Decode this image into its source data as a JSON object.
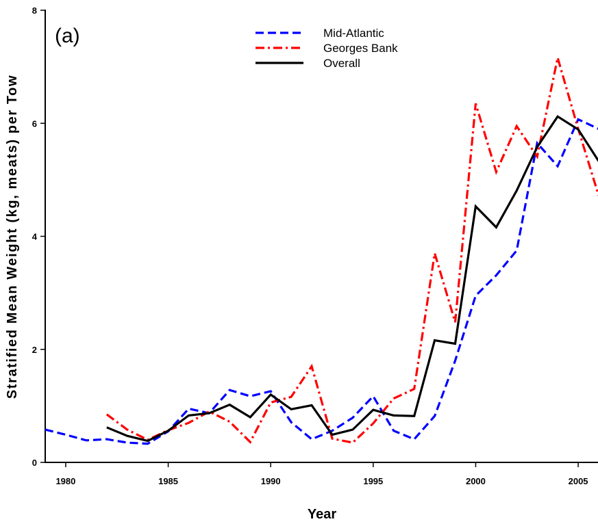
{
  "chart_data": {
    "type": "line",
    "panel_label": "(a)",
    "xlabel": "Year",
    "ylabel": "Stratified Mean Weight (kg, meats) per Tow",
    "xlim": [
      1979,
      2006
    ],
    "ylim": [
      0,
      8
    ],
    "x_ticks": [
      1980,
      1985,
      1990,
      1995,
      2000,
      2005
    ],
    "y_ticks": [
      0,
      2,
      4,
      6,
      8
    ],
    "grid": false,
    "legend_position": "top-center",
    "series": [
      {
        "name": "Mid-Atlantic",
        "color": "#0000ff",
        "style": "dashed",
        "x": [
          1979,
          1980,
          1981,
          1982,
          1983,
          1984,
          1985,
          1986,
          1987,
          1988,
          1989,
          1990,
          1991,
          1992,
          1993,
          1994,
          1995,
          1996,
          1997,
          1998,
          1999,
          2000,
          2001,
          2002,
          2003,
          2004,
          2005,
          2006
        ],
        "y": [
          0.58,
          0.49,
          0.39,
          0.41,
          0.35,
          0.33,
          0.55,
          0.95,
          0.87,
          1.28,
          1.17,
          1.26,
          0.71,
          0.41,
          0.56,
          0.79,
          1.17,
          0.56,
          0.41,
          0.82,
          1.8,
          2.95,
          3.31,
          3.75,
          5.65,
          5.24,
          6.07,
          5.9
        ]
      },
      {
        "name": "Georges Bank",
        "color": "#ff0000",
        "style": "dash-dot",
        "x": [
          1982,
          1983,
          1984,
          1985,
          1986,
          1987,
          1988,
          1989,
          1990,
          1991,
          1992,
          1993,
          1994,
          1995,
          1996,
          1997,
          1998,
          1999,
          2000,
          2001,
          2002,
          2003,
          2004,
          2005,
          2006
        ],
        "y": [
          0.85,
          0.58,
          0.4,
          0.57,
          0.7,
          0.9,
          0.72,
          0.36,
          1.06,
          1.16,
          1.7,
          0.42,
          0.35,
          0.69,
          1.13,
          1.3,
          3.7,
          2.48,
          6.35,
          5.14,
          5.95,
          5.41,
          7.16,
          5.9,
          4.72
        ]
      },
      {
        "name": "Overall",
        "color": "#000000",
        "style": "solid",
        "x": [
          1982,
          1983,
          1984,
          1985,
          1986,
          1987,
          1988,
          1989,
          1990,
          1991,
          1992,
          1993,
          1994,
          1995,
          1996,
          1997,
          1998,
          1999,
          2000,
          2001,
          2002,
          2003,
          2004,
          2005,
          2006
        ],
        "y": [
          0.62,
          0.47,
          0.38,
          0.56,
          0.83,
          0.87,
          1.02,
          0.8,
          1.2,
          0.94,
          1.01,
          0.49,
          0.58,
          0.93,
          0.83,
          0.82,
          2.16,
          2.1,
          4.53,
          4.16,
          4.81,
          5.58,
          6.12,
          5.89,
          5.33
        ]
      }
    ]
  }
}
